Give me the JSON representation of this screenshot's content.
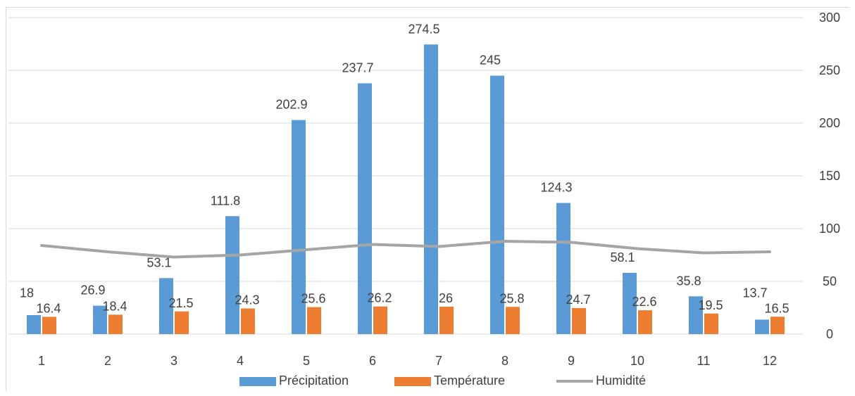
{
  "chart_data": {
    "type": "bar",
    "categories": [
      "1",
      "2",
      "3",
      "4",
      "5",
      "6",
      "7",
      "8",
      "9",
      "10",
      "11",
      "12"
    ],
    "series": [
      {
        "name": "Précipitation",
        "type": "bar",
        "color": "#5b9bd5",
        "values": [
          18,
          26.9,
          53.1,
          111.8,
          202.9,
          237.7,
          274.5,
          245,
          124.3,
          58.1,
          35.8,
          13.7
        ]
      },
      {
        "name": "Température",
        "type": "bar",
        "color": "#ed7d31",
        "values": [
          16.4,
          18.4,
          21.5,
          24.3,
          25.6,
          26.2,
          26,
          25.8,
          24.7,
          22.6,
          19.5,
          16.5
        ]
      },
      {
        "name": "Humidité",
        "type": "line",
        "color": "#a5a5a5",
        "values": [
          84,
          78,
          73,
          75,
          80,
          85,
          83,
          88,
          87,
          81,
          77,
          78
        ]
      }
    ],
    "y_ticks": [
      "0",
      "50",
      "100",
      "150",
      "200",
      "250",
      "300"
    ],
    "ylim": [
      0,
      300
    ],
    "y_axis_side": "right",
    "grid": true,
    "legend": "bottom",
    "title": "",
    "xlabel": "",
    "ylabel": ""
  }
}
